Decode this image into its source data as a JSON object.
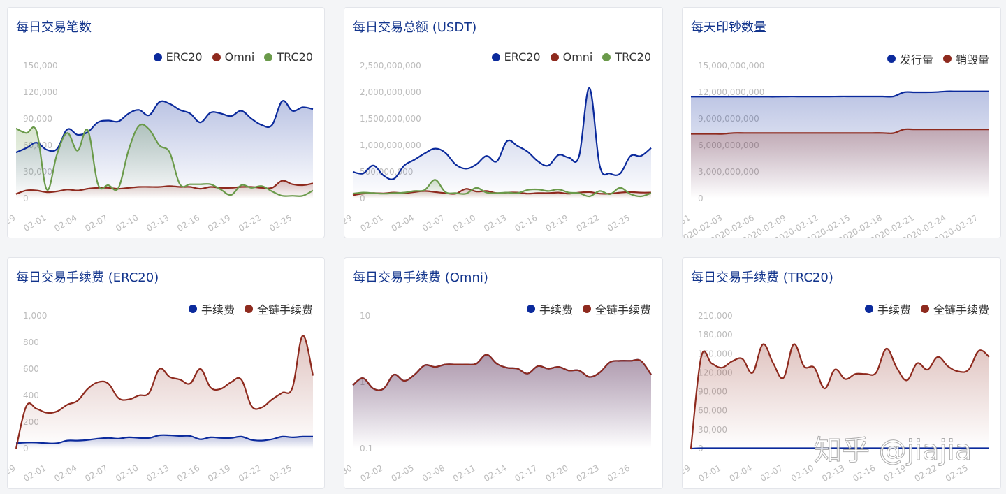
{
  "colors": {
    "title": "#12348c",
    "erc20": "#0b2a9c",
    "omni": "#8e2a1e",
    "trc20": "#6a9a4a",
    "axis_label": "#bcbcbc"
  },
  "watermark": "知乎 @jiajia",
  "chart_data": [
    {
      "type": "area",
      "title": "每日交易笔数",
      "ylim": [
        0,
        150000
      ],
      "yticks": [
        "0",
        "30,000",
        "60,000",
        "90,000",
        "120,000",
        "150,000"
      ],
      "scale": "linear",
      "x": [
        "01-29",
        "01-30",
        "01-31",
        "02-01",
        "02-02",
        "02-03",
        "02-04",
        "02-05",
        "02-06",
        "02-07",
        "02-08",
        "02-09",
        "02-10",
        "02-11",
        "02-12",
        "02-13",
        "02-14",
        "02-15",
        "02-16",
        "02-17",
        "02-18",
        "02-19",
        "02-20",
        "02-21",
        "02-22",
        "02-23",
        "02-24",
        "02-25",
        "02-26",
        "02-27"
      ],
      "legend": "top-right",
      "series": [
        {
          "name": "ERC20",
          "color": "#0b2a9c",
          "values": [
            52000,
            57000,
            63000,
            55000,
            56000,
            78000,
            72000,
            75000,
            86000,
            88000,
            87000,
            96000,
            100000,
            94000,
            109000,
            107000,
            100000,
            96000,
            86000,
            97000,
            96000,
            93000,
            99000,
            90000,
            83000,
            83000,
            110000,
            99000,
            103000,
            101000
          ]
        },
        {
          "name": "Omni",
          "color": "#8e2a1e",
          "values": [
            5000,
            9000,
            9000,
            7000,
            8000,
            10000,
            9000,
            11000,
            12000,
            12000,
            11000,
            12000,
            13000,
            13000,
            13000,
            14000,
            13000,
            13000,
            11000,
            13000,
            12000,
            12000,
            13000,
            13000,
            12000,
            12000,
            20000,
            16000,
            15000,
            17000
          ]
        },
        {
          "name": "TRC20",
          "color": "#6a9a4a",
          "values": [
            79000,
            74000,
            76000,
            10000,
            50000,
            74000,
            54000,
            77000,
            16000,
            15000,
            12000,
            55000,
            82000,
            78000,
            60000,
            52000,
            16000,
            16000,
            16000,
            16000,
            10000,
            4000,
            15000,
            12000,
            14000,
            8000,
            3000,
            3000,
            3000,
            9000
          ]
        }
      ]
    },
    {
      "type": "area",
      "title": "每日交易总额 (USDT)",
      "ylim": [
        0,
        2500000000
      ],
      "yticks": [
        "0",
        "500,000,000",
        "1,000,000,000",
        "1,500,000,000",
        "2,000,000,000",
        "2,500,000,000"
      ],
      "scale": "linear",
      "x": [
        "01-29",
        "01-30",
        "01-31",
        "02-01",
        "02-02",
        "02-03",
        "02-04",
        "02-05",
        "02-06",
        "02-07",
        "02-08",
        "02-09",
        "02-10",
        "02-11",
        "02-12",
        "02-13",
        "02-14",
        "02-15",
        "02-16",
        "02-17",
        "02-18",
        "02-19",
        "02-20",
        "02-21",
        "02-22",
        "02-23",
        "02-24",
        "02-25",
        "02-26",
        "02-27"
      ],
      "legend": "top-right",
      "series": [
        {
          "name": "ERC20",
          "color": "#0b2a9c",
          "values": [
            500000000,
            470000000,
            620000000,
            430000000,
            370000000,
            620000000,
            730000000,
            850000000,
            940000000,
            860000000,
            640000000,
            560000000,
            640000000,
            800000000,
            700000000,
            1080000000,
            990000000,
            880000000,
            700000000,
            620000000,
            820000000,
            770000000,
            800000000,
            2080000000,
            620000000,
            470000000,
            470000000,
            800000000,
            800000000,
            950000000
          ]
        },
        {
          "name": "Omni",
          "color": "#8e2a1e",
          "values": [
            60000000,
            90000000,
            100000000,
            95000000,
            110000000,
            100000000,
            120000000,
            140000000,
            120000000,
            100000000,
            90000000,
            180000000,
            130000000,
            140000000,
            100000000,
            110000000,
            110000000,
            90000000,
            100000000,
            100000000,
            110000000,
            90000000,
            110000000,
            120000000,
            90000000,
            90000000,
            110000000,
            120000000,
            110000000,
            110000000
          ]
        },
        {
          "name": "TRC20",
          "color": "#6a9a4a",
          "values": [
            90000000,
            110000000,
            100000000,
            90000000,
            100000000,
            110000000,
            140000000,
            160000000,
            350000000,
            120000000,
            100000000,
            90000000,
            200000000,
            110000000,
            100000000,
            110000000,
            100000000,
            160000000,
            170000000,
            140000000,
            170000000,
            110000000,
            100000000,
            40000000,
            140000000,
            80000000,
            200000000,
            80000000,
            40000000,
            100000000
          ]
        }
      ]
    },
    {
      "type": "area",
      "title": "每天印钞数量",
      "ylim": [
        0,
        15000000000
      ],
      "yticks": [
        "0",
        "3,000,000,000",
        "6,000,000,000",
        "9,000,000,000",
        "12,000,000,000",
        "15,000,000,000"
      ],
      "scale": "linear",
      "x": [
        "2020-01-31",
        "2020-02-01",
        "2020-02-02",
        "2020-02-03",
        "2020-02-04",
        "2020-02-05",
        "2020-02-06",
        "2020-02-07",
        "2020-02-08",
        "2020-02-09",
        "2020-02-10",
        "2020-02-11",
        "2020-02-12",
        "2020-02-13",
        "2020-02-14",
        "2020-02-15",
        "2020-02-16",
        "2020-02-17",
        "2020-02-18",
        "2020-02-19",
        "2020-02-20",
        "2020-02-21",
        "2020-02-22",
        "2020-02-23",
        "2020-02-24",
        "2020-02-25",
        "2020-02-26",
        "2020-02-27",
        "2020-02-28"
      ],
      "legend": "top-right",
      "series": [
        {
          "name": "发行量",
          "color": "#0b2a9c",
          "values": [
            11500000000,
            11500000000,
            11500000000,
            11500000000,
            11500000000,
            11500000000,
            11500000000,
            11500000000,
            11500000000,
            11520000000,
            11520000000,
            11520000000,
            11520000000,
            11520000000,
            11530000000,
            11530000000,
            11530000000,
            11530000000,
            11530000000,
            11530000000,
            12000000000,
            12000000000,
            12000000000,
            12020000000,
            12100000000,
            12100000000,
            12100000000,
            12100000000,
            12100000000
          ]
        },
        {
          "name": "销毁量",
          "color": "#8e2a1e",
          "values": [
            7300000000,
            7300000000,
            7300000000,
            7300000000,
            7400000000,
            7400000000,
            7400000000,
            7400000000,
            7400000000,
            7400000000,
            7400000000,
            7400000000,
            7400000000,
            7400000000,
            7400000000,
            7400000000,
            7400000000,
            7400000000,
            7400000000,
            7380000000,
            7800000000,
            7800000000,
            7800000000,
            7800000000,
            7800000000,
            7800000000,
            7800000000,
            7800000000,
            7800000000
          ]
        }
      ]
    },
    {
      "type": "area",
      "title": "每日交易手续费 (ERC20)",
      "ylim": [
        0,
        1000
      ],
      "yticks": [
        "0",
        "200",
        "400",
        "600",
        "800",
        "1,000"
      ],
      "scale": "linear",
      "x": [
        "01-29",
        "01-30",
        "01-31",
        "02-01",
        "02-02",
        "02-03",
        "02-04",
        "02-05",
        "02-06",
        "02-07",
        "02-08",
        "02-09",
        "02-10",
        "02-11",
        "02-12",
        "02-13",
        "02-14",
        "02-15",
        "02-16",
        "02-17",
        "02-18",
        "02-19",
        "02-20",
        "02-21",
        "02-22",
        "02-23",
        "02-24",
        "02-25",
        "02-26",
        "02-27"
      ],
      "legend": "top-right",
      "series": [
        {
          "name": "手续费",
          "color": "#0b2a9c",
          "values": [
            40,
            45,
            45,
            40,
            40,
            60,
            60,
            65,
            75,
            80,
            75,
            85,
            80,
            80,
            100,
            100,
            95,
            95,
            70,
            85,
            80,
            80,
            90,
            65,
            60,
            70,
            90,
            85,
            90,
            90
          ]
        },
        {
          "name": "全链手续费",
          "color": "#8e2a1e",
          "values": [
            0,
            320,
            300,
            270,
            280,
            330,
            360,
            450,
            500,
            490,
            380,
            370,
            400,
            420,
            600,
            540,
            520,
            490,
            600,
            460,
            450,
            500,
            520,
            320,
            310,
            370,
            420,
            460,
            850,
            550
          ]
        }
      ]
    },
    {
      "type": "area",
      "title": "每日交易手续费 (Omni)",
      "ylim": [
        0.1,
        10
      ],
      "yticks": [
        "0.1",
        "1",
        "10"
      ],
      "scale": "log",
      "x": [
        "01-30",
        "01-31",
        "02-01",
        "02-02",
        "02-03",
        "02-04",
        "02-05",
        "02-06",
        "02-07",
        "02-08",
        "02-09",
        "02-10",
        "02-11",
        "02-12",
        "02-13",
        "02-14",
        "02-15",
        "02-16",
        "02-17",
        "02-18",
        "02-19",
        "02-20",
        "02-21",
        "02-22",
        "02-23",
        "02-24",
        "02-25",
        "02-26",
        "02-27",
        "02-28"
      ],
      "legend": "top-right",
      "series": [
        {
          "name": "手续费",
          "color": "#0b2a9c",
          "values": [
            0.9,
            1.15,
            0.8,
            0.8,
            1.3,
            1.05,
            1.3,
            1.8,
            1.7,
            1.85,
            1.85,
            1.85,
            1.9,
            2.6,
            1.9,
            1.65,
            1.6,
            1.35,
            1.75,
            1.6,
            1.7,
            1.5,
            1.5,
            1.2,
            1.4,
            2.0,
            2.1,
            2.1,
            2.1,
            1.3
          ]
        },
        {
          "name": "全链手续费",
          "color": "#8e2a1e",
          "values": [
            0.9,
            1.15,
            0.8,
            0.8,
            1.3,
            1.05,
            1.3,
            1.8,
            1.7,
            1.85,
            1.85,
            1.85,
            1.9,
            2.6,
            1.9,
            1.65,
            1.6,
            1.35,
            1.75,
            1.6,
            1.7,
            1.5,
            1.5,
            1.2,
            1.4,
            2.0,
            2.1,
            2.1,
            2.1,
            1.3
          ]
        }
      ]
    },
    {
      "type": "area",
      "title": "每日交易手续费 (TRC20)",
      "ylim": [
        0,
        210000
      ],
      "yticks": [
        "0",
        "30,000",
        "60,000",
        "90,000",
        "120,000",
        "150,000",
        "180,000",
        "210,000"
      ],
      "scale": "linear",
      "x": [
        "01-29",
        "01-30",
        "01-31",
        "02-01",
        "02-02",
        "02-03",
        "02-04",
        "02-05",
        "02-06",
        "02-07",
        "02-08",
        "02-09",
        "02-10",
        "02-11",
        "02-12",
        "02-13",
        "02-14",
        "02-15",
        "02-16",
        "02-17",
        "02-18",
        "02-19",
        "02-20",
        "02-21",
        "02-22",
        "02-23",
        "02-24",
        "02-25",
        "02-26",
        "02-27"
      ],
      "legend": "top-right",
      "series": [
        {
          "name": "手续费",
          "color": "#0b2a9c",
          "values": [
            0,
            600,
            600,
            600,
            600,
            600,
            600,
            600,
            600,
            600,
            600,
            600,
            600,
            600,
            600,
            600,
            600,
            600,
            600,
            600,
            600,
            600,
            600,
            600,
            600,
            600,
            600,
            600,
            600,
            600
          ]
        },
        {
          "name": "全链手续费",
          "color": "#8e2a1e",
          "values": [
            0,
            145000,
            135000,
            128000,
            138000,
            142000,
            120000,
            165000,
            135000,
            112000,
            165000,
            130000,
            128000,
            95000,
            125000,
            110000,
            118000,
            118000,
            120000,
            158000,
            128000,
            108000,
            135000,
            125000,
            145000,
            130000,
            122000,
            125000,
            155000,
            145000
          ]
        }
      ]
    }
  ]
}
